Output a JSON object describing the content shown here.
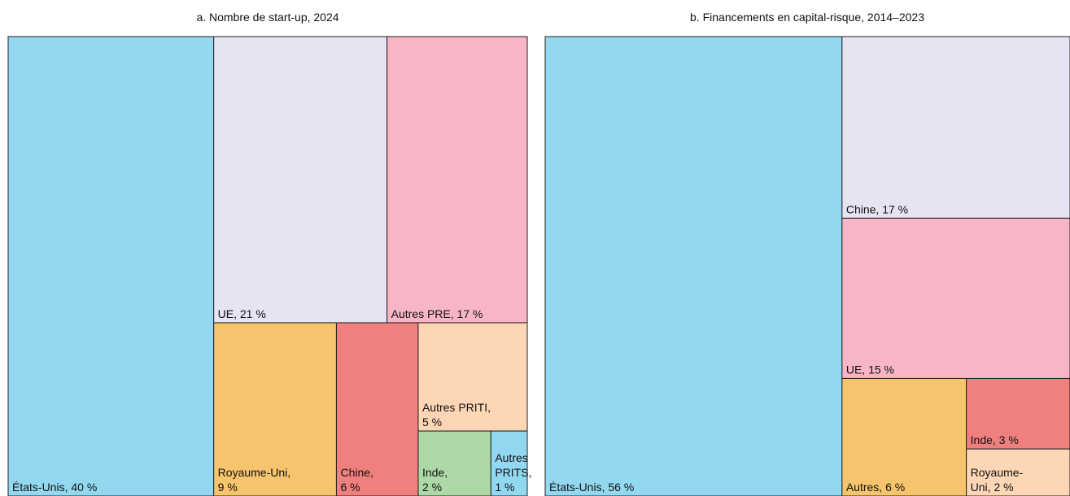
{
  "chart_data": [
    {
      "type": "treemap",
      "title": "a. Nombre de start-up, 2024",
      "labels": [
        "États-Unis, 40 %",
        "UE, 21 %",
        "Autres PRE, 17 %",
        "Royaume-Uni,\n9 %",
        "Chine,\n6 %",
        "Autres PRITI,\n5 %",
        "Inde,\n2 %",
        "Autres\nPRITS,\n1 %"
      ],
      "values": [
        40,
        21,
        17,
        9,
        6,
        5,
        2,
        1
      ],
      "colors": [
        "#93d8f1",
        "#e6e3f2",
        "#f7b5c6",
        "#f5c46c",
        "#ef807e",
        "#fdd6b6",
        "#acd9a6",
        "#93d8f1"
      ]
    },
    {
      "type": "treemap",
      "title": "b. Financements en capital-risque, 2014–2023",
      "labels": [
        "États-Unis, 56 %",
        "Chine, 17 %",
        "UE, 15 %",
        "Autres, 6 %",
        "Inde, 3 %",
        "Royaume-\nUni, 2 %"
      ],
      "values": [
        56,
        17,
        15,
        6,
        3,
        2
      ],
      "colors": [
        "#93d8f1",
        "#e6e3f2",
        "#f7b5c6",
        "#f5c46c",
        "#ef807e",
        "#fdd6b6"
      ]
    }
  ]
}
